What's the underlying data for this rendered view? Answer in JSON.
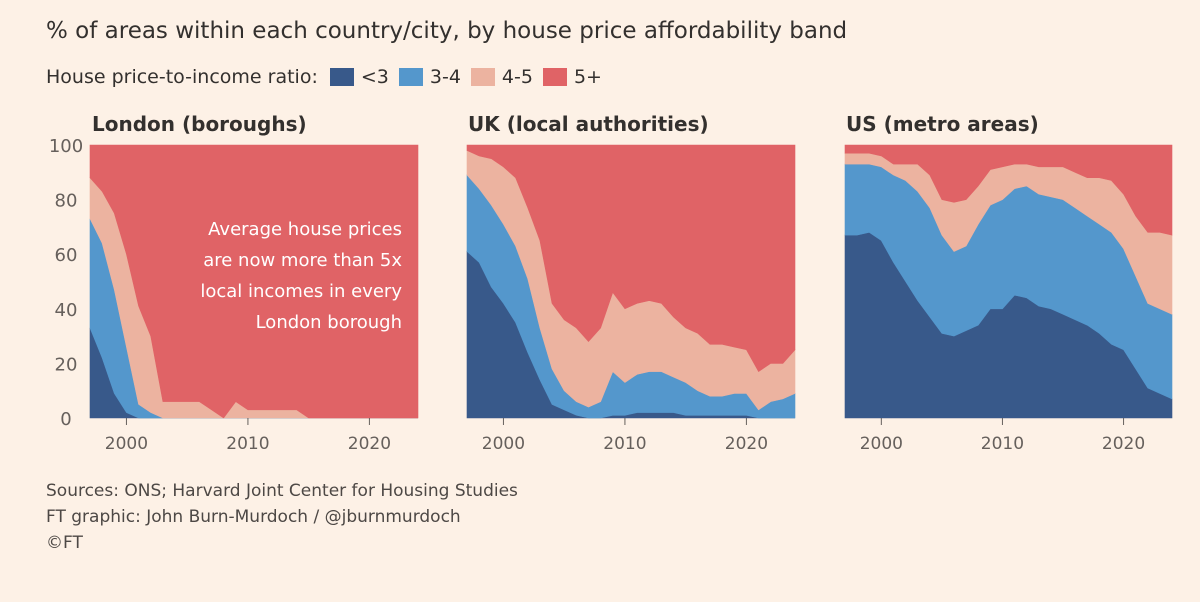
{
  "header": {
    "subtitle": "% of areas within each country/city, by house price affordability band"
  },
  "legend": {
    "title": "House price-to-income ratio:",
    "items": [
      {
        "label": "<3",
        "color": "#38598a"
      },
      {
        "label": "3-4",
        "color": "#5497cc"
      },
      {
        "label": "4-5",
        "color": "#ecb3a0"
      },
      {
        "label": "5+",
        "color": "#e06366"
      }
    ]
  },
  "footer": {
    "sources": "Sources: ONS; Harvard Joint Center for Housing Studies",
    "graphic": "FT graphic: John Burn-Murdoch / @jburnmurdoch",
    "copyright": "©FT"
  },
  "chart_data": [
    {
      "type": "area",
      "stacked": true,
      "title": "London (boroughs)",
      "x": [
        1997,
        1998,
        1999,
        2000,
        2001,
        2002,
        2003,
        2004,
        2005,
        2006,
        2007,
        2008,
        2009,
        2010,
        2011,
        2012,
        2013,
        2014,
        2015,
        2016,
        2017,
        2018,
        2019,
        2020,
        2021,
        2022,
        2023,
        2024
      ],
      "series": [
        {
          "name": "<3",
          "values": [
            33,
            22,
            9,
            2,
            0,
            0,
            0,
            0,
            0,
            0,
            0,
            0,
            0,
            0,
            0,
            0,
            0,
            0,
            0,
            0,
            0,
            0,
            0,
            0,
            0,
            0,
            0,
            0
          ]
        },
        {
          "name": "3-4",
          "values": [
            40,
            42,
            38,
            24,
            5,
            2,
            0,
            0,
            0,
            0,
            0,
            0,
            0,
            0,
            0,
            0,
            0,
            0,
            0,
            0,
            0,
            0,
            0,
            0,
            0,
            0,
            0,
            0
          ]
        },
        {
          "name": "4-5",
          "values": [
            15,
            19,
            28,
            34,
            36,
            28,
            6,
            6,
            6,
            6,
            3,
            0,
            6,
            3,
            3,
            3,
            3,
            3,
            0,
            0,
            0,
            0,
            0,
            0,
            0,
            0,
            0,
            0
          ]
        },
        {
          "name": "5+",
          "values": [
            12,
            17,
            25,
            40,
            59,
            70,
            94,
            94,
            94,
            94,
            97,
            100,
            94,
            97,
            97,
            97,
            97,
            97,
            100,
            100,
            100,
            100,
            100,
            100,
            100,
            100,
            100,
            100
          ]
        }
      ],
      "xlim": [
        1997,
        2024
      ],
      "xticks": [
        2000,
        2010,
        2020
      ],
      "ylim": [
        0,
        100
      ],
      "yticks": [
        0,
        20,
        40,
        60,
        80,
        100
      ],
      "annotation": [
        "Average house prices",
        "are now more than 5x",
        "local incomes in every",
        "London borough"
      ]
    },
    {
      "type": "area",
      "stacked": true,
      "title": "UK (local authorities)",
      "x": [
        1997,
        1998,
        1999,
        2000,
        2001,
        2002,
        2003,
        2004,
        2005,
        2006,
        2007,
        2008,
        2009,
        2010,
        2011,
        2012,
        2013,
        2014,
        2015,
        2016,
        2017,
        2018,
        2019,
        2020,
        2021,
        2022,
        2023,
        2024
      ],
      "series": [
        {
          "name": "<3",
          "values": [
            61,
            57,
            48,
            42,
            35,
            24,
            14,
            5,
            3,
            1,
            0,
            0,
            1,
            1,
            2,
            2,
            2,
            2,
            1,
            1,
            1,
            1,
            1,
            1,
            0,
            0,
            0,
            0
          ]
        },
        {
          "name": "3-4",
          "values": [
            28,
            27,
            30,
            29,
            28,
            27,
            19,
            13,
            7,
            5,
            4,
            6,
            16,
            12,
            14,
            15,
            15,
            13,
            12,
            9,
            7,
            7,
            8,
            8,
            3,
            6,
            7,
            9
          ]
        },
        {
          "name": "4-5",
          "values": [
            9,
            12,
            17,
            21,
            25,
            26,
            32,
            24,
            26,
            27,
            24,
            27,
            29,
            27,
            26,
            26,
            25,
            22,
            20,
            21,
            19,
            19,
            17,
            16,
            14,
            14,
            13,
            16
          ]
        },
        {
          "name": "5+",
          "values": [
            2,
            4,
            5,
            8,
            12,
            23,
            35,
            58,
            64,
            67,
            72,
            67,
            54,
            60,
            58,
            57,
            58,
            63,
            67,
            69,
            73,
            73,
            74,
            75,
            83,
            80,
            80,
            75
          ]
        }
      ],
      "xlim": [
        1997,
        2024
      ],
      "xticks": [
        2000,
        2010,
        2020
      ],
      "ylim": [
        0,
        100
      ]
    },
    {
      "type": "area",
      "stacked": true,
      "title": "US (metro areas)",
      "x": [
        1997,
        1998,
        1999,
        2000,
        2001,
        2002,
        2003,
        2004,
        2005,
        2006,
        2007,
        2008,
        2009,
        2010,
        2011,
        2012,
        2013,
        2014,
        2015,
        2016,
        2017,
        2018,
        2019,
        2020,
        2021,
        2022,
        2023,
        2024
      ],
      "series": [
        {
          "name": "<3",
          "values": [
            67,
            67,
            68,
            65,
            57,
            50,
            43,
            37,
            31,
            30,
            32,
            34,
            40,
            40,
            45,
            44,
            41,
            40,
            38,
            36,
            34,
            31,
            27,
            25,
            18,
            11,
            9,
            7
          ]
        },
        {
          "name": "3-4",
          "values": [
            26,
            26,
            25,
            27,
            32,
            37,
            40,
            40,
            36,
            31,
            31,
            37,
            38,
            40,
            39,
            41,
            41,
            41,
            42,
            41,
            40,
            40,
            41,
            37,
            34,
            31,
            31,
            31
          ]
        },
        {
          "name": "4-5",
          "values": [
            4,
            4,
            4,
            4,
            4,
            6,
            10,
            12,
            13,
            18,
            17,
            14,
            13,
            12,
            9,
            8,
            10,
            11,
            12,
            13,
            14,
            17,
            19,
            20,
            22,
            26,
            28,
            29
          ]
        },
        {
          "name": "5+",
          "values": [
            3,
            3,
            3,
            4,
            7,
            7,
            7,
            11,
            20,
            21,
            20,
            15,
            9,
            8,
            7,
            7,
            8,
            8,
            8,
            10,
            12,
            12,
            13,
            18,
            26,
            32,
            32,
            33
          ]
        }
      ],
      "xlim": [
        1997,
        2024
      ],
      "xticks": [
        2000,
        2010,
        2020
      ],
      "ylim": [
        0,
        100
      ]
    }
  ]
}
